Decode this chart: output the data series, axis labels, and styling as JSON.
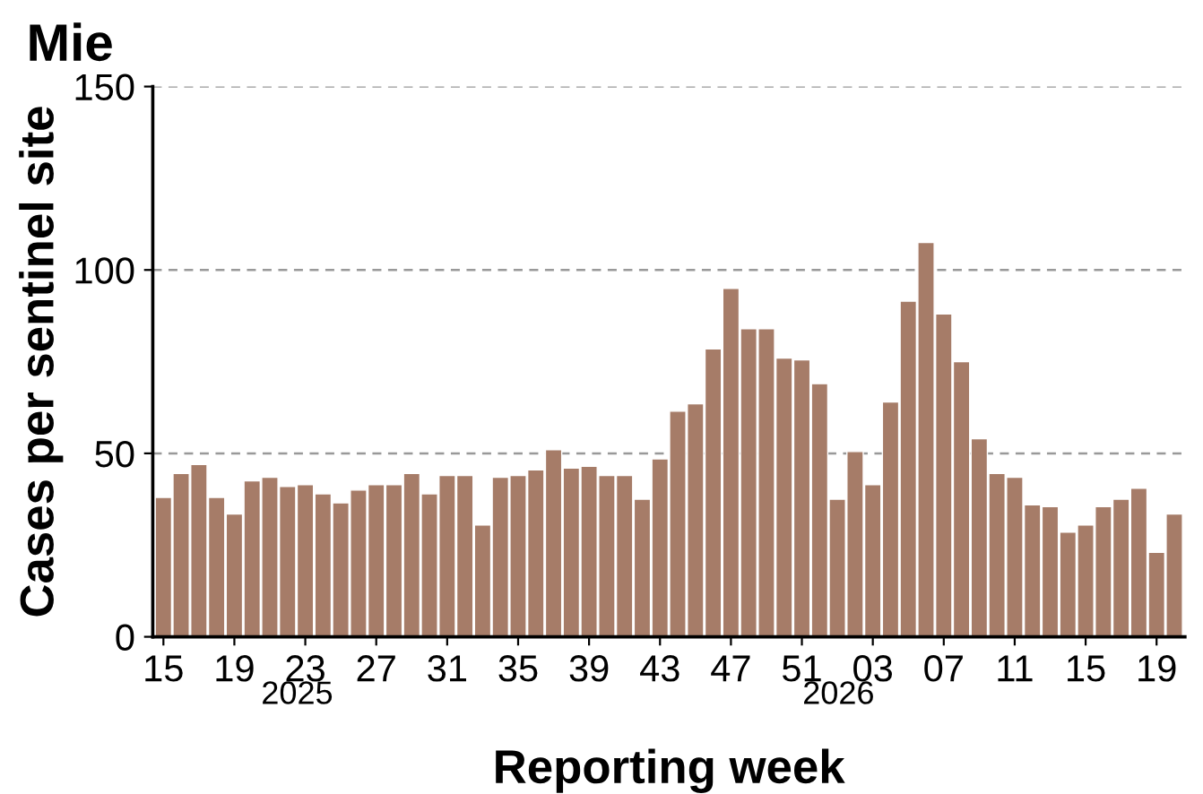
{
  "chart_data": {
    "type": "bar",
    "title": "Mie",
    "xlabel": "Reporting week",
    "ylabel": "Cases per sentinel site",
    "categories": [
      "15",
      null,
      null,
      null,
      "19",
      null,
      null,
      null,
      "23",
      null,
      null,
      null,
      "27",
      null,
      null,
      null,
      "31",
      null,
      null,
      null,
      "35",
      null,
      null,
      null,
      "39",
      null,
      null,
      null,
      "43",
      null,
      null,
      null,
      "47",
      null,
      null,
      null,
      "51",
      null,
      null,
      null,
      "03",
      null,
      null,
      null,
      "07",
      null,
      null,
      null,
      "11",
      null,
      null,
      null,
      "15",
      null,
      null,
      null,
      "19",
      null
    ],
    "values": [
      38,
      44.5,
      47,
      38,
      33.5,
      42.5,
      43.5,
      41,
      41.5,
      39,
      36.5,
      40,
      41.5,
      41.5,
      44.5,
      39,
      44,
      44,
      30.5,
      43.5,
      44,
      45.5,
      51,
      46,
      46.5,
      44,
      44,
      37.5,
      48.5,
      61.5,
      63.5,
      78.5,
      95,
      84,
      84,
      76,
      75.5,
      69,
      37.5,
      50.5,
      41.5,
      64,
      91.5,
      107.5,
      88,
      75,
      54,
      44.5,
      43.5,
      36,
      35.5,
      28.5,
      30.5,
      35.5,
      37.5,
      40.5,
      23,
      33.5
    ],
    "color": "#a67c68",
    "ylim": [
      0,
      150
    ],
    "yticks": [
      0,
      50,
      100,
      150
    ],
    "grid": "y",
    "annotations": [
      "2025",
      "2026"
    ]
  }
}
